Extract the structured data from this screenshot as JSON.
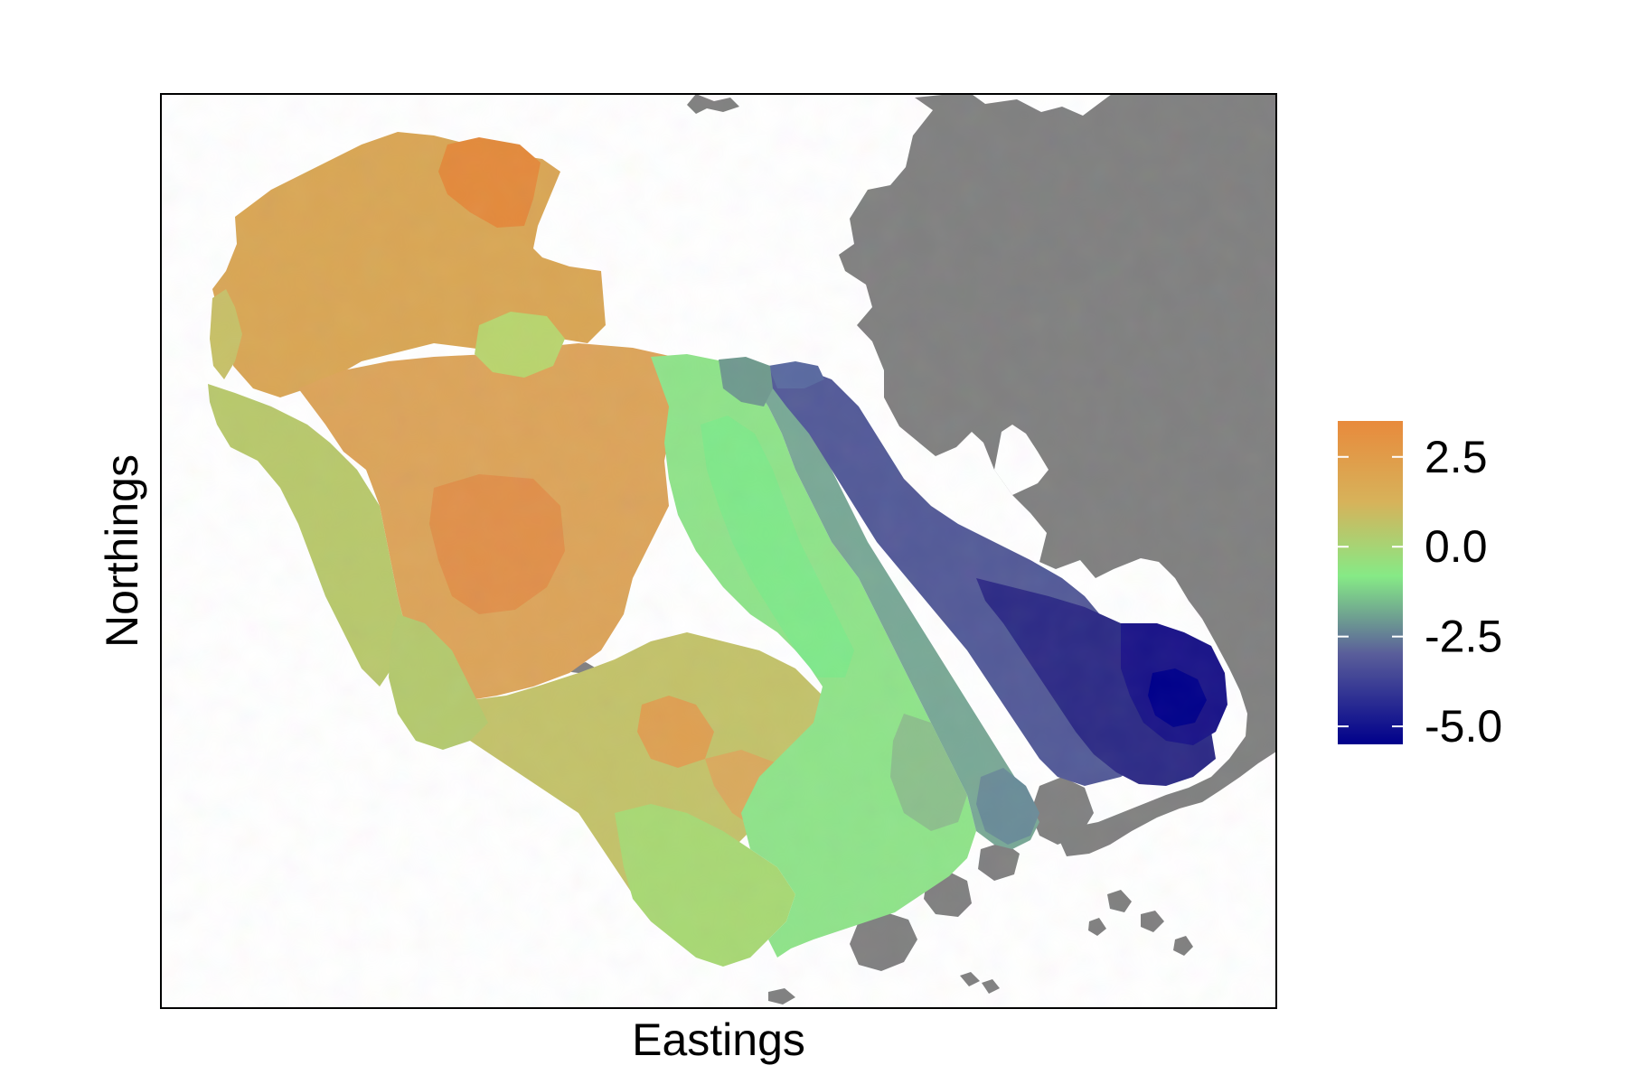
{
  "chart_data": {
    "type": "heatmap",
    "title": "",
    "xlabel": "Eastings",
    "ylabel": "Northings",
    "x_ticks": [],
    "y_ticks": [],
    "grid": false,
    "legend": {
      "position": "right",
      "range": [
        -5.5,
        3.5
      ],
      "ticks": [
        {
          "value": 2.5,
          "label": "2.5"
        },
        {
          "value": 0.0,
          "label": "0.0"
        },
        {
          "value": -2.5,
          "label": "-2.5"
        },
        {
          "value": -5.0,
          "label": "-5.0"
        }
      ],
      "colors": {
        "high": "#e88a3c",
        "upper_mid": "#d7b25a",
        "mid": "#86ea86",
        "lower_mid": "#5a5e9a",
        "low": "#00008b"
      }
    },
    "land_color": "#808080",
    "frame_color": "#000000"
  }
}
